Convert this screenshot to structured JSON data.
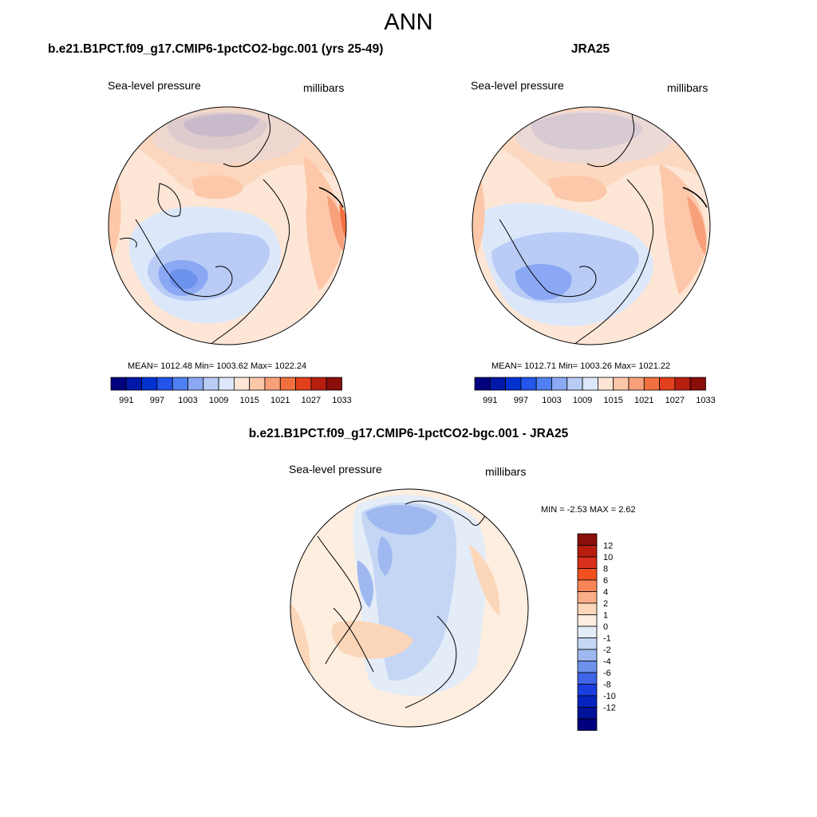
{
  "title": "ANN",
  "panels": [
    {
      "title": "b.e21.B1PCT.f09_g17.CMIP6-1pctCO2-bgc.001 (yrs 25-49)",
      "variable": "Sea-level pressure",
      "units": "millibars",
      "stats": "MEAN= 1012.48  Min= 1003.62  Max= 1022.24"
    },
    {
      "title": "JRA25",
      "variable": "Sea-level pressure",
      "units": "millibars",
      "stats": "MEAN= 1012.71  Min= 1003.26  Max= 1021.22"
    }
  ],
  "difference": {
    "title": "b.e21.B1PCT.f09_g17.CMIP6-1pctCO2-bgc.001 - JRA25",
    "variable": "Sea-level pressure",
    "units": "millibars",
    "stats": "MIN =  -2.53 MAX =   2.62"
  },
  "colorbar_main": {
    "colors": [
      "#00007f",
      "#0018a8",
      "#0032d0",
      "#2255e8",
      "#4f7ff0",
      "#8aa8f4",
      "#b9ccf6",
      "#dce8fa",
      "#fde6d6",
      "#fcc8a9",
      "#f8a07a",
      "#f2703f",
      "#e0401b",
      "#b81e10",
      "#8a0e0a"
    ],
    "tick_labels": [
      "991",
      "997",
      "1003",
      "1009",
      "1015",
      "1021",
      "1027",
      "1033"
    ]
  },
  "colorbar_diff": {
    "colors": [
      "#8a0e0a",
      "#b81e10",
      "#d8301a",
      "#f25020",
      "#f88458",
      "#f9ae88",
      "#fbd6b8",
      "#fdeee0",
      "#e4ecf8",
      "#c4d6f4",
      "#9fb9f0",
      "#6d92ec",
      "#3f66e8",
      "#1a3ee0",
      "#0624c0",
      "#00139a",
      "#00007f"
    ],
    "tick_labels": [
      "12",
      "10",
      "8",
      "6",
      "4",
      "2",
      "1",
      "0",
      "-1",
      "-2",
      "-4",
      "-6",
      "-8",
      "-10",
      "-12"
    ]
  },
  "map_colors": {
    "ocean_edge": "#fde6d6",
    "light_blue": "#dce8fa",
    "mid_blue": "#b9ccf6",
    "blue": "#8aa8f4",
    "dark_blue": "#6d92ec",
    "light_orange": "#fcc8a9",
    "orange": "#f8a07a",
    "deep_orange": "#f2703f"
  }
}
